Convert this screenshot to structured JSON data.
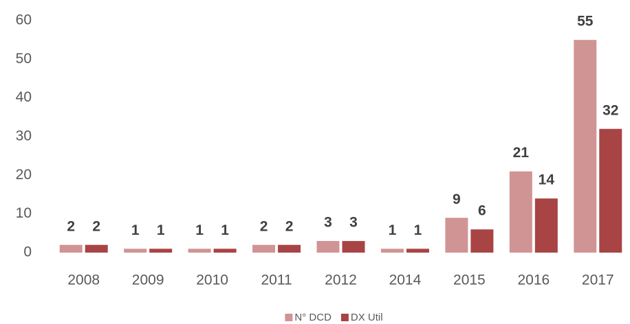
{
  "chart_data": {
    "type": "bar",
    "categories": [
      "2008",
      "2009",
      "2010",
      "2011",
      "2012",
      "2014",
      "2015",
      "2016",
      "2017"
    ],
    "series": [
      {
        "name": "N° DCD",
        "color": "#d09494",
        "values": [
          2,
          1,
          1,
          2,
          3,
          1,
          9,
          21,
          55
        ]
      },
      {
        "name": "DX Util",
        "color": "#a94444",
        "values": [
          2,
          1,
          1,
          2,
          3,
          1,
          6,
          14,
          32
        ]
      }
    ],
    "ylim": [
      0,
      60
    ],
    "yticks": [
      0,
      10,
      20,
      30,
      40,
      50,
      60
    ],
    "grid": false,
    "legend": "bottom",
    "data_labels": true
  }
}
